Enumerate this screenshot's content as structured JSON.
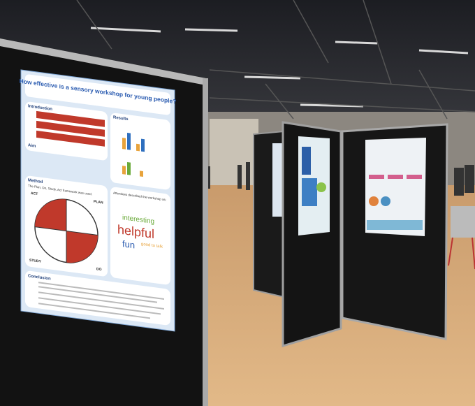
{
  "poster": {
    "title": "How effective is a sensory workshop for young people?",
    "introduction": "Introduction",
    "aim": "Aim",
    "method": "Method",
    "method_text": "The Plan, Do, Study, Act framework was used.",
    "cycle": [
      "ACT",
      "PLAN",
      "DO",
      "STUDY"
    ],
    "results": "Results",
    "attendees": "Attendees described the workshop as:",
    "words": [
      "interesting",
      "helpful",
      "fun",
      "good to talk"
    ],
    "conclusion": "Conclusion"
  }
}
